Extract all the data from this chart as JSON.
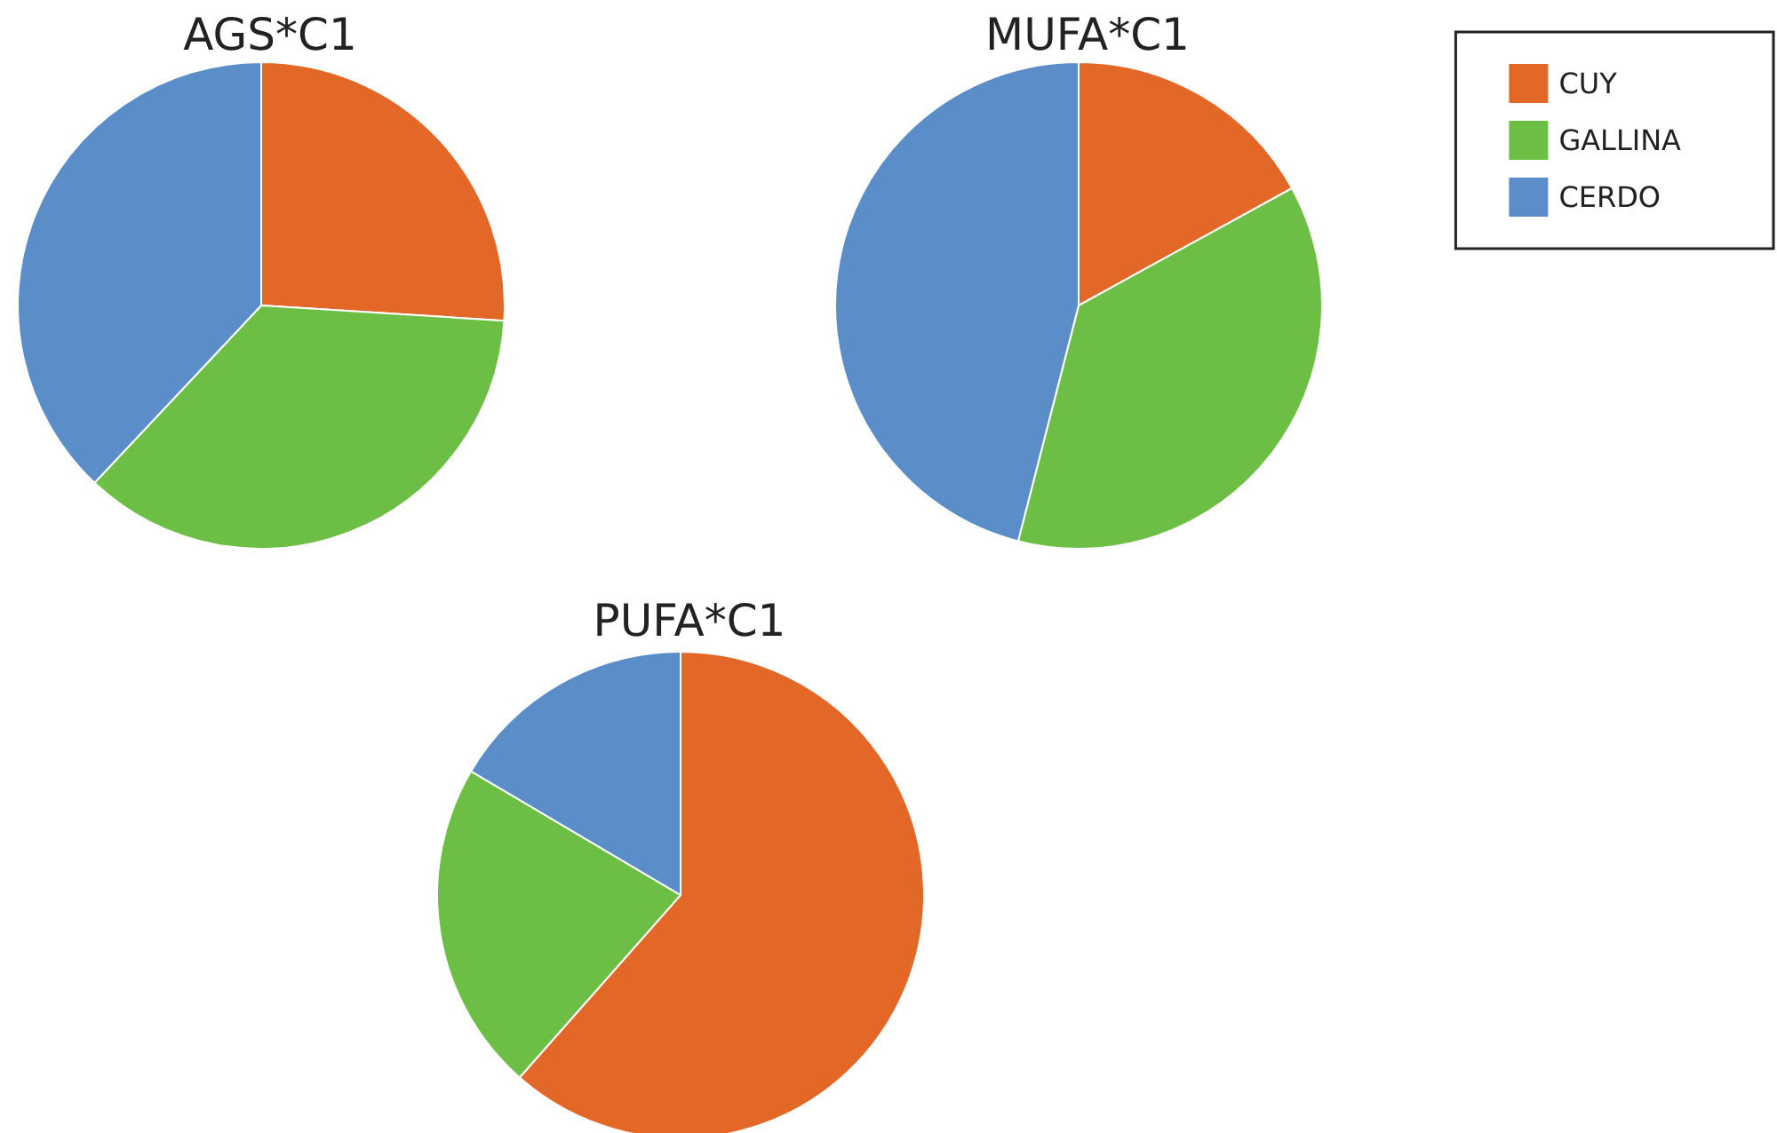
{
  "chart_data": [
    {
      "type": "pie",
      "title": "AGS*C1",
      "categories": [
        null,
        null,
        null
      ],
      "values": [
        26,
        36,
        38
      ],
      "colors": [
        "#e36726",
        "#6cbe45",
        "#5b8dc9"
      ]
    },
    {
      "type": "pie",
      "title": "MUFA*C1",
      "categories": [
        "CUY",
        "GALLINA",
        "CERDO"
      ],
      "values": [
        17,
        37,
        46
      ],
      "colors": [
        "#e36726",
        "#6cbe45",
        "#5b8dc9"
      ],
      "legend": "top right"
    },
    {
      "type": "pie",
      "title": "PUFA*C1",
      "categories": [
        null,
        null,
        null
      ],
      "values": [
        61.5,
        22,
        16.5
      ],
      "colors": [
        "#e36726",
        "#6cbe45",
        "#5b8dc9"
      ]
    }
  ]
}
